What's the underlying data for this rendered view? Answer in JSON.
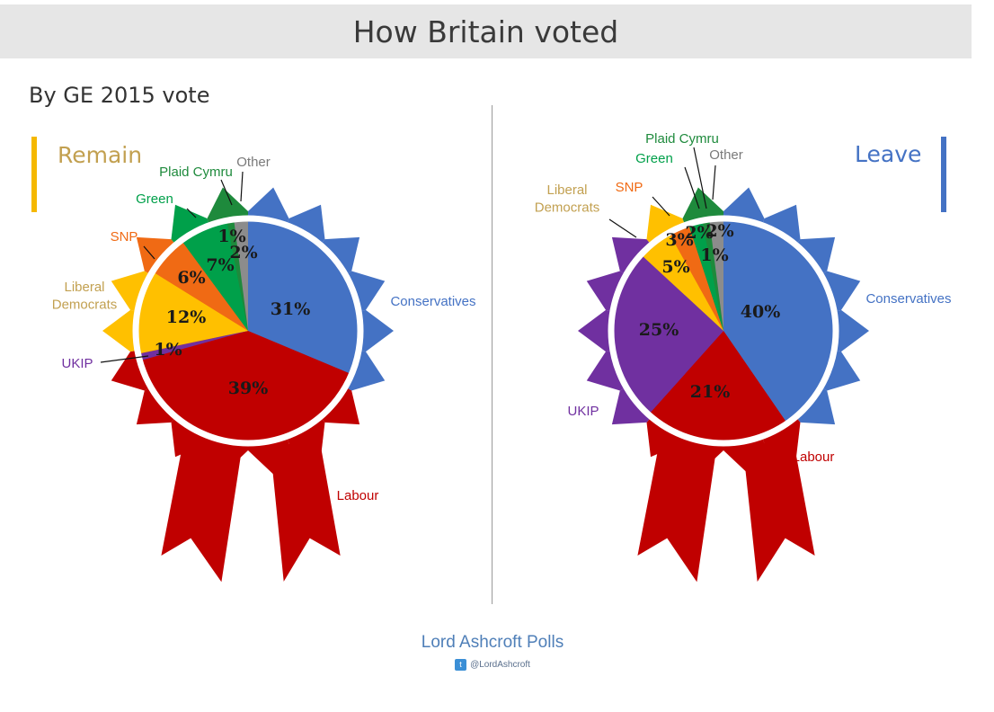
{
  "header": {
    "title": "How Britain voted"
  },
  "subtitle": "By GE 2015 vote",
  "footer": {
    "title": "Lord Ashcroft Polls",
    "handle": "@LordAshcroft"
  },
  "colors": {
    "Conservatives": "#4472c4",
    "Labour": "#c00000",
    "UKIP": "#7030a0",
    "Liberal Democrats": "#ffc000",
    "SNP": "#f06a14",
    "Green": "#00a04a",
    "Plaid Cymru": "#1e8a3c",
    "Other": "#8c8c8c",
    "remain_accent": "#f5b800",
    "leave_accent": "#4472c4"
  },
  "chart_data": [
    {
      "type": "pie",
      "title": "Remain",
      "categories": [
        "Conservatives",
        "Labour",
        "UKIP",
        "Liberal Democrats",
        "SNP",
        "Green",
        "Plaid Cymru",
        "Other"
      ],
      "values": [
        31,
        39,
        1,
        12,
        6,
        7,
        1,
        2
      ],
      "labels": [
        "31%",
        "39%",
        "1%",
        "12%",
        "6%",
        "7%",
        "1%",
        "2%"
      ]
    },
    {
      "type": "pie",
      "title": "Leave",
      "categories": [
        "Conservatives",
        "Labour",
        "UKIP",
        "Liberal Democrats",
        "SNP",
        "Green",
        "Plaid Cymru",
        "Other"
      ],
      "values": [
        40,
        21,
        25,
        5,
        3,
        2,
        1,
        2
      ],
      "labels": [
        "40%",
        "21%",
        "25%",
        "5%",
        "3%",
        "2%",
        "1%",
        "2%"
      ]
    }
  ]
}
